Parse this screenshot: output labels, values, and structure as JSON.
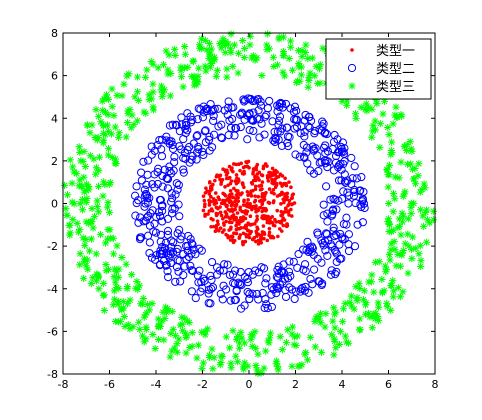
{
  "chart_data": {
    "type": "scatter",
    "title": "",
    "xlabel": "",
    "ylabel": "",
    "xlim": [
      -8,
      8
    ],
    "ylim": [
      -8,
      8
    ],
    "xticks": [
      "-8",
      "-6",
      "-4",
      "-2",
      "0",
      "2",
      "4",
      "6",
      "8"
    ],
    "yticks": [
      "8",
      "6",
      "4",
      "2",
      "0",
      "-2",
      "-4",
      "-6",
      "-8"
    ],
    "grid": false,
    "legend_position": "top-right",
    "series": [
      {
        "name": "类型一",
        "marker": "dot",
        "color": "#ff0000",
        "distribution": "disk",
        "radius_range": [
          0,
          2
        ],
        "count": 500
      },
      {
        "name": "类型二",
        "marker": "circle",
        "color": "#0000ff",
        "distribution": "annulus",
        "radius_range": [
          3,
          5
        ],
        "count": 600
      },
      {
        "name": "类型三",
        "marker": "asterisk",
        "color": "#00ff00",
        "distribution": "annulus",
        "radius_range": [
          6,
          8
        ],
        "count": 700
      }
    ]
  }
}
